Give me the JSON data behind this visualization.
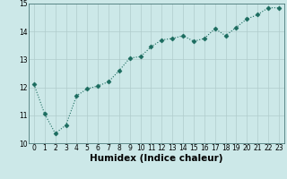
{
  "x": [
    0,
    1,
    2,
    3,
    4,
    5,
    6,
    7,
    8,
    9,
    10,
    11,
    12,
    13,
    14,
    15,
    16,
    17,
    18,
    19,
    20,
    21,
    22,
    23
  ],
  "y": [
    12.1,
    11.05,
    10.35,
    10.65,
    11.7,
    11.95,
    12.05,
    12.2,
    12.6,
    13.05,
    13.1,
    13.45,
    13.7,
    13.75,
    13.85,
    13.65,
    13.75,
    14.1,
    13.85,
    14.15,
    14.45,
    14.6,
    14.85,
    14.85
  ],
  "xlabel": "Humidex (Indice chaleur)",
  "ylim": [
    10,
    15
  ],
  "xlim_min": -0.5,
  "xlim_max": 23.5,
  "yticks": [
    10,
    11,
    12,
    13,
    14,
    15
  ],
  "xticks": [
    0,
    1,
    2,
    3,
    4,
    5,
    6,
    7,
    8,
    9,
    10,
    11,
    12,
    13,
    14,
    15,
    16,
    17,
    18,
    19,
    20,
    21,
    22,
    23
  ],
  "line_color": "#1a6b5e",
  "marker": "D",
  "marker_size": 2.5,
  "bg_color": "#cce8e8",
  "grid_color": "#b0cccc",
  "tick_label_fontsize": 5.5,
  "xlabel_fontsize": 7.5,
  "xlabel_fontweight": "bold"
}
